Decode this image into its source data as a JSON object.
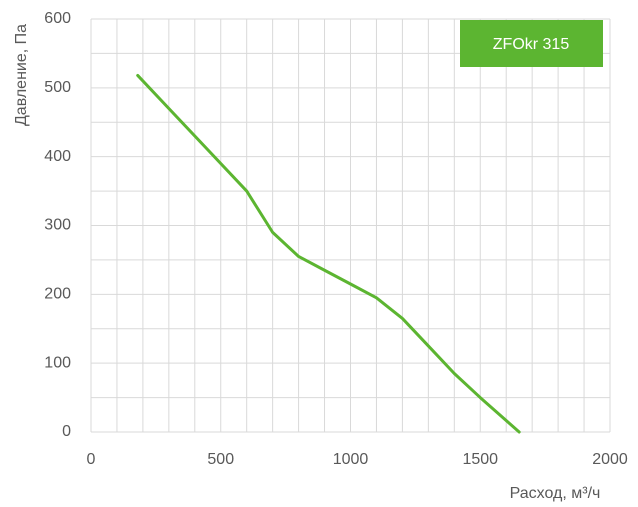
{
  "chart_data": {
    "type": "line",
    "title": "ZFOkr 315",
    "x_label": "Расход, м³/ч",
    "y_label": "Давление, Па",
    "x": [
      180,
      300,
      450,
      600,
      700,
      800,
      900,
      1000,
      1100,
      1200,
      1300,
      1400,
      1500,
      1650
    ],
    "series": [
      {
        "name": "ZFOkr 315",
        "color": "#5cb531",
        "values": [
          518,
          470,
          410,
          350,
          290,
          255,
          235,
          215,
          195,
          165,
          125,
          85,
          50,
          0
        ]
      }
    ],
    "xlim": [
      0,
      2000
    ],
    "xticks": [
      0,
      500,
      1000,
      1500,
      2000
    ],
    "ylim": [
      0,
      600
    ],
    "yticks": [
      0,
      100,
      200,
      300,
      400,
      500,
      600
    ],
    "xgrid": [
      0,
      100,
      200,
      300,
      400,
      500,
      600,
      700,
      800,
      900,
      1000,
      1100,
      1200,
      1300,
      1400,
      1500,
      1600,
      1700,
      1800,
      1900,
      2000
    ],
    "ygrid": [
      0,
      50,
      100,
      150,
      200,
      250,
      300,
      350,
      400,
      450,
      500,
      550,
      600
    ],
    "grid": true,
    "title_color": "#5cb531"
  }
}
